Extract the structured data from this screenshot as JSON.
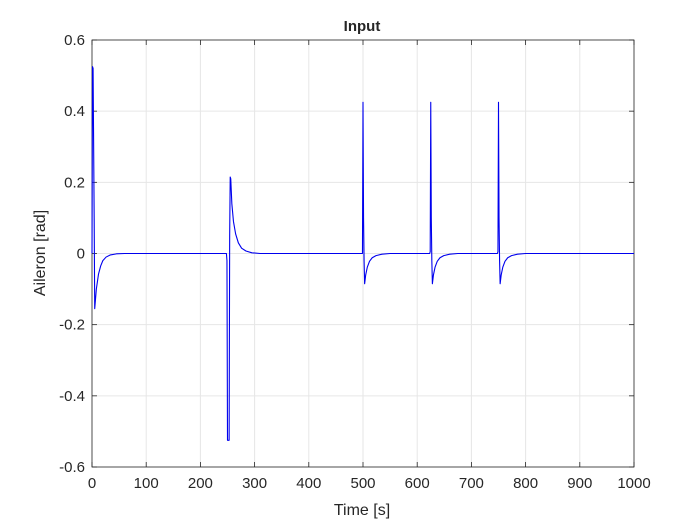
{
  "chart_data": {
    "type": "line",
    "title": "Input",
    "xlabel": "Time [s]",
    "ylabel": "Aileron [rad]",
    "xlim": [
      0,
      1000
    ],
    "ylim": [
      -0.6,
      0.6
    ],
    "xticks": [
      0,
      100,
      200,
      300,
      400,
      500,
      600,
      700,
      800,
      900,
      1000
    ],
    "yticks": [
      -0.6,
      -0.4,
      -0.2,
      0,
      0.2,
      0.4,
      0.6
    ],
    "xtick_labels": [
      "0",
      "100",
      "200",
      "300",
      "400",
      "500",
      "600",
      "700",
      "800",
      "900",
      "1000"
    ],
    "ytick_labels": [
      "-0.6",
      "-0.4",
      "-0.2",
      "0",
      "0.2",
      "0.4",
      "0.6"
    ],
    "grid": true,
    "colors": {
      "series": "#0000ee",
      "grid": "#e6e6e6",
      "axis": "#262626"
    },
    "series": [
      {
        "name": "",
        "x": [
          0,
          1,
          2,
          4,
          5,
          8,
          12,
          16,
          20,
          26,
          34,
          45,
          60,
          80,
          120,
          200,
          248,
          249,
          250,
          253,
          254,
          255,
          256,
          258,
          261,
          265,
          270,
          276,
          284,
          295,
          310,
          340,
          400,
          498,
          499,
          500,
          501,
          502,
          503,
          505,
          508,
          512,
          517,
          524,
          535,
          550,
          570,
          600,
          622,
          623,
          624,
          625,
          626,
          627,
          628,
          630,
          633,
          637,
          642,
          649,
          660,
          675,
          695,
          720,
          745,
          747,
          748,
          749,
          750,
          751,
          752,
          753,
          755,
          758,
          762,
          767,
          774,
          785,
          800,
          820,
          850,
          900,
          1000
        ],
        "values": [
          0,
          0.525,
          0.52,
          0.1,
          -0.155,
          -0.1,
          -0.058,
          -0.035,
          -0.02,
          -0.01,
          -0.004,
          -0.001,
          0,
          0,
          0,
          0,
          0,
          -0.02,
          -0.525,
          -0.525,
          0.05,
          0.215,
          0.21,
          0.14,
          0.09,
          0.055,
          0.03,
          0.015,
          0.007,
          0.002,
          0,
          0,
          0,
          0,
          0,
          0.425,
          0.1,
          -0.02,
          -0.085,
          -0.06,
          -0.038,
          -0.022,
          -0.012,
          -0.006,
          -0.002,
          0,
          0,
          0,
          0,
          0,
          0.005,
          0.425,
          0.1,
          -0.02,
          -0.085,
          -0.06,
          -0.038,
          -0.022,
          -0.012,
          -0.006,
          -0.002,
          0,
          0,
          0,
          0,
          0,
          0,
          0.005,
          0.425,
          0.1,
          -0.02,
          -0.085,
          -0.06,
          -0.038,
          -0.022,
          -0.012,
          -0.006,
          -0.002,
          0,
          0,
          0,
          0,
          0
        ]
      }
    ]
  }
}
